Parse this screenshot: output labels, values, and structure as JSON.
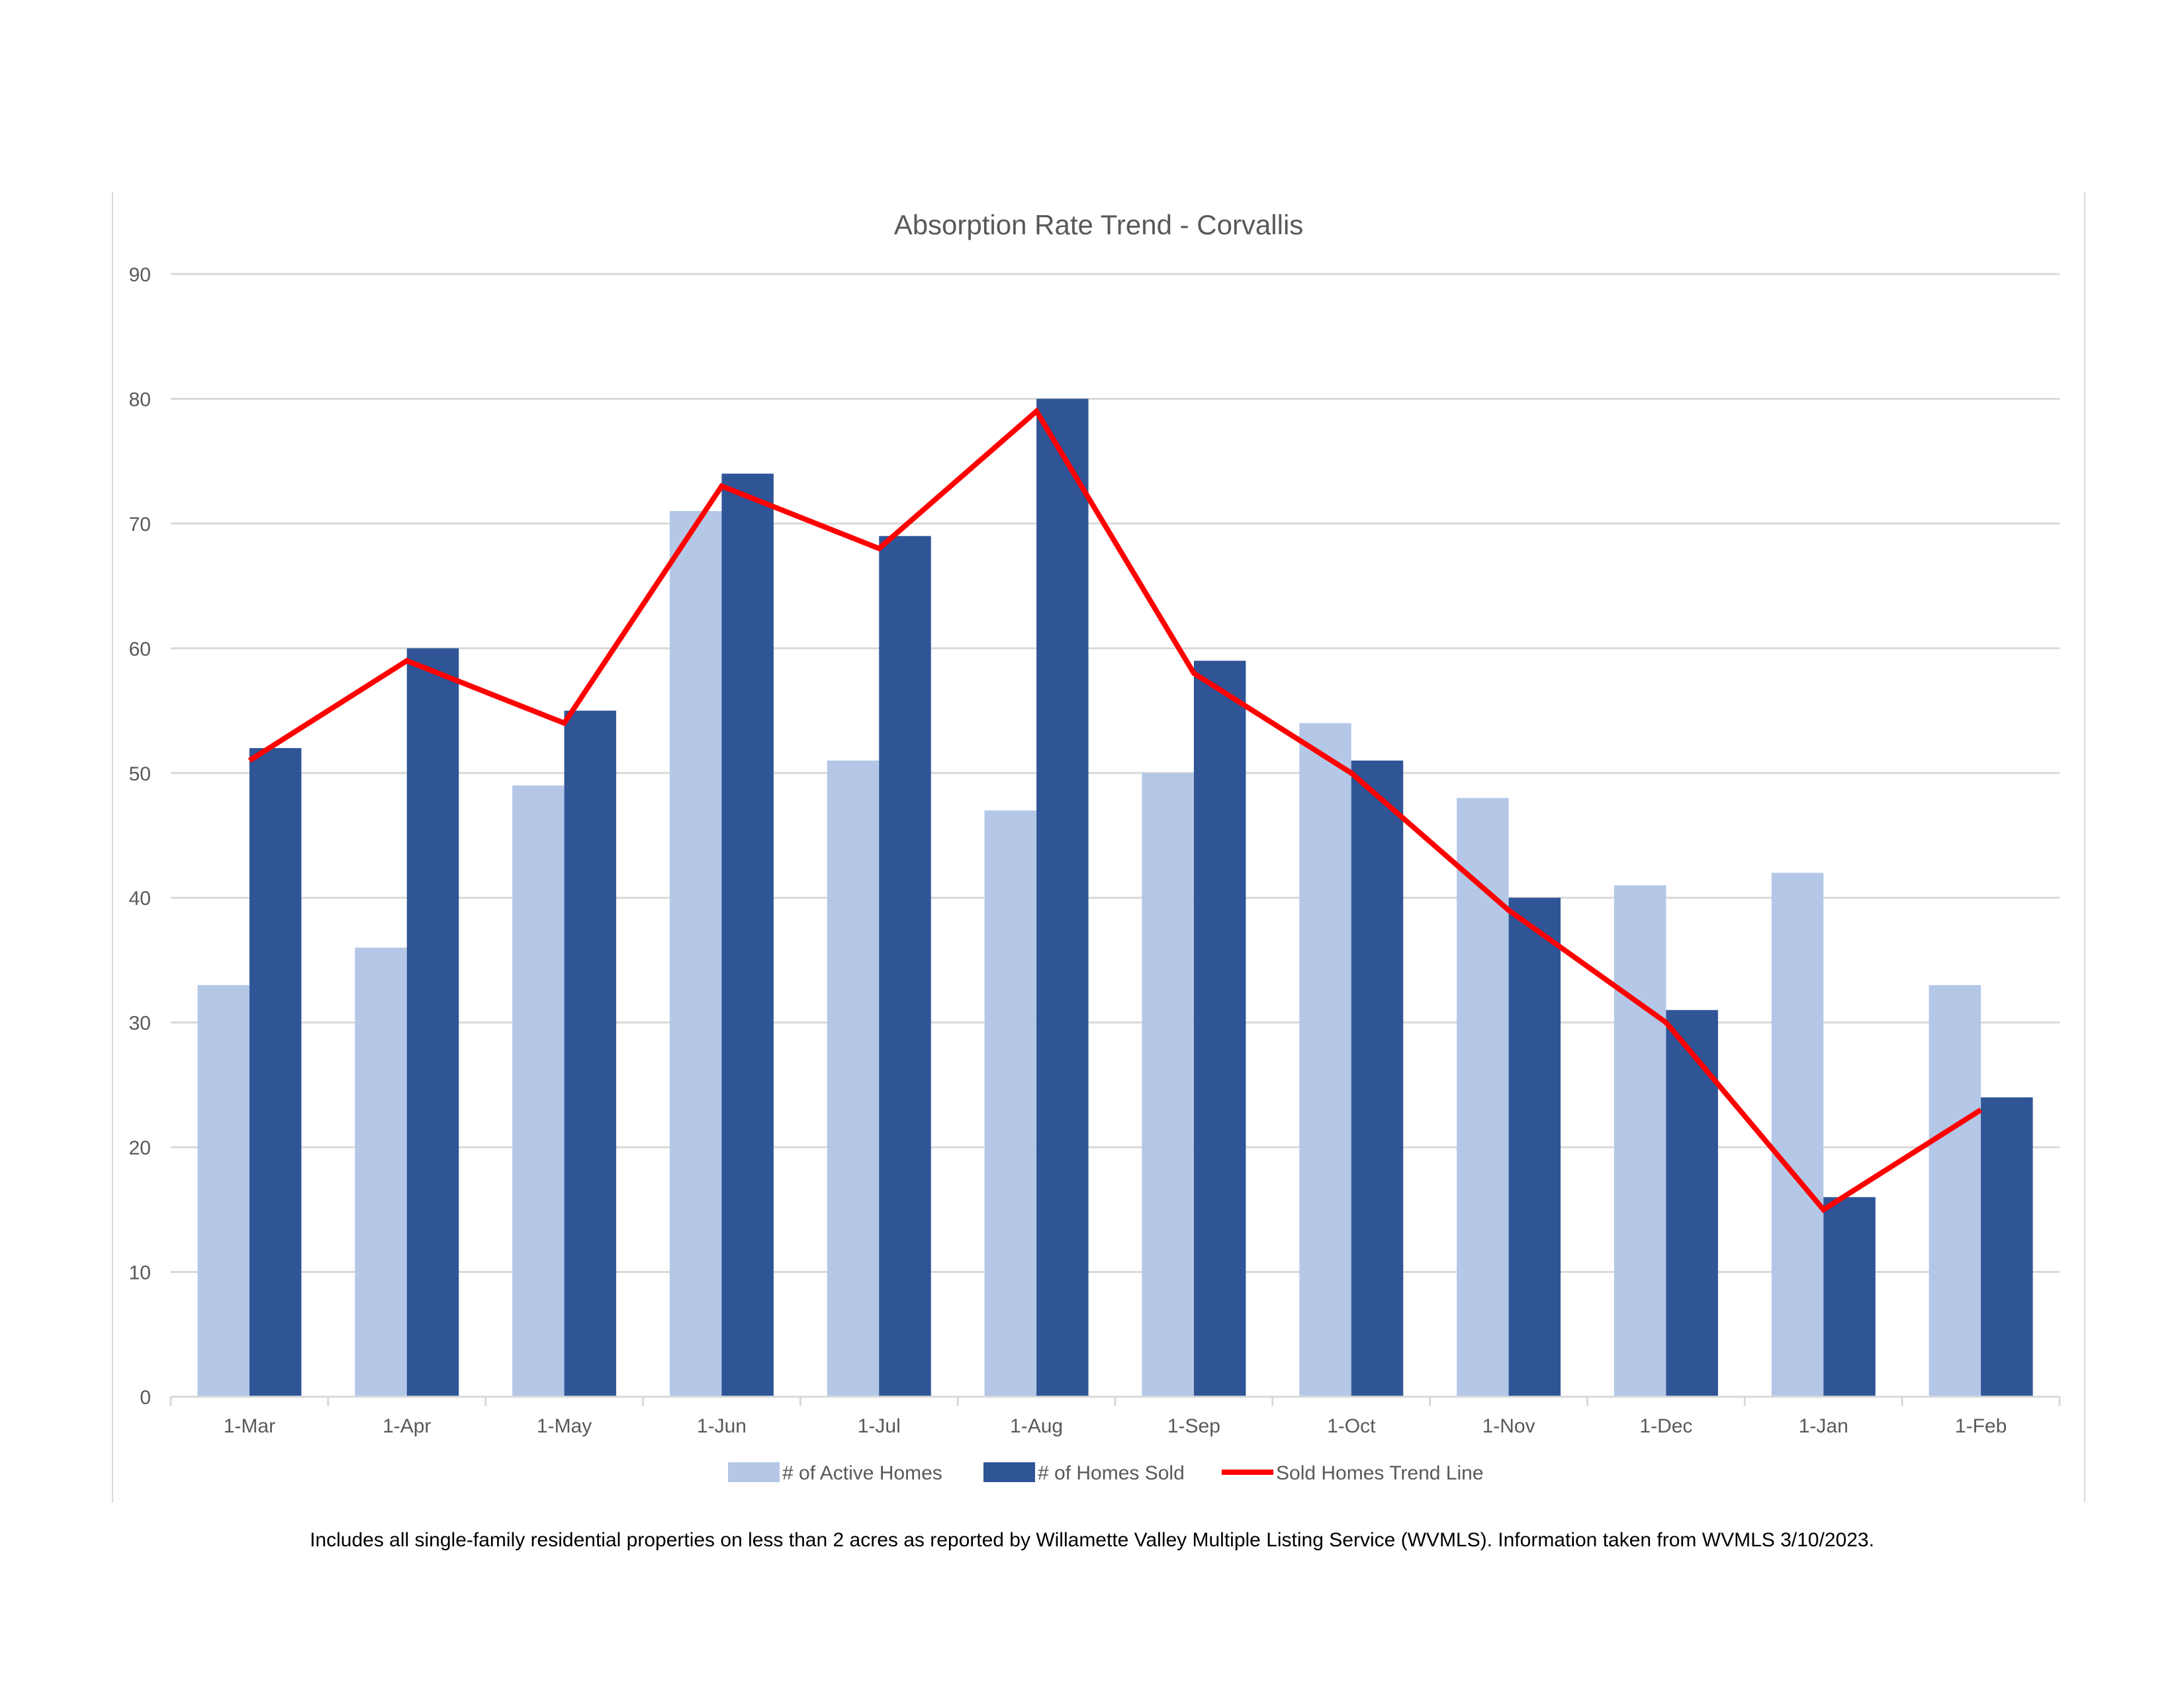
{
  "chart_data": {
    "type": "bar",
    "title": "Absorption Rate Trend - Corvallis",
    "categories": [
      "1-Mar",
      "1-Apr",
      "1-May",
      "1-Jun",
      "1-Jul",
      "1-Aug",
      "1-Sep",
      "1-Oct",
      "1-Nov",
      "1-Dec",
      "1-Jan",
      "1-Feb"
    ],
    "series": [
      {
        "name": "# of Active Homes",
        "type": "bar",
        "color": "#b4c7e7",
        "values": [
          33,
          36,
          49,
          71,
          51,
          47,
          50,
          54,
          48,
          41,
          42,
          33
        ]
      },
      {
        "name": "# of Homes Sold",
        "type": "bar",
        "color": "#2f5597",
        "values": [
          52,
          60,
          55,
          74,
          69,
          80,
          59,
          51,
          40,
          31,
          16,
          24
        ]
      },
      {
        "name": "Sold Homes Trend Line",
        "type": "line",
        "color": "#ff0000",
        "values": [
          51,
          59,
          54,
          73,
          68,
          79,
          58,
          50,
          39,
          30,
          15,
          23
        ]
      }
    ],
    "ylim": [
      0,
      90
    ],
    "yticks": [
      0,
      10,
      20,
      30,
      40,
      50,
      60,
      70,
      80,
      90
    ],
    "grid": true,
    "legend": "bottom"
  },
  "footnote": "Includes all single-family residential properties on less than 2 acres as reported by Willamette Valley Multiple Listing Service (WVMLS). Information taken from WVMLS 3/10/2023."
}
